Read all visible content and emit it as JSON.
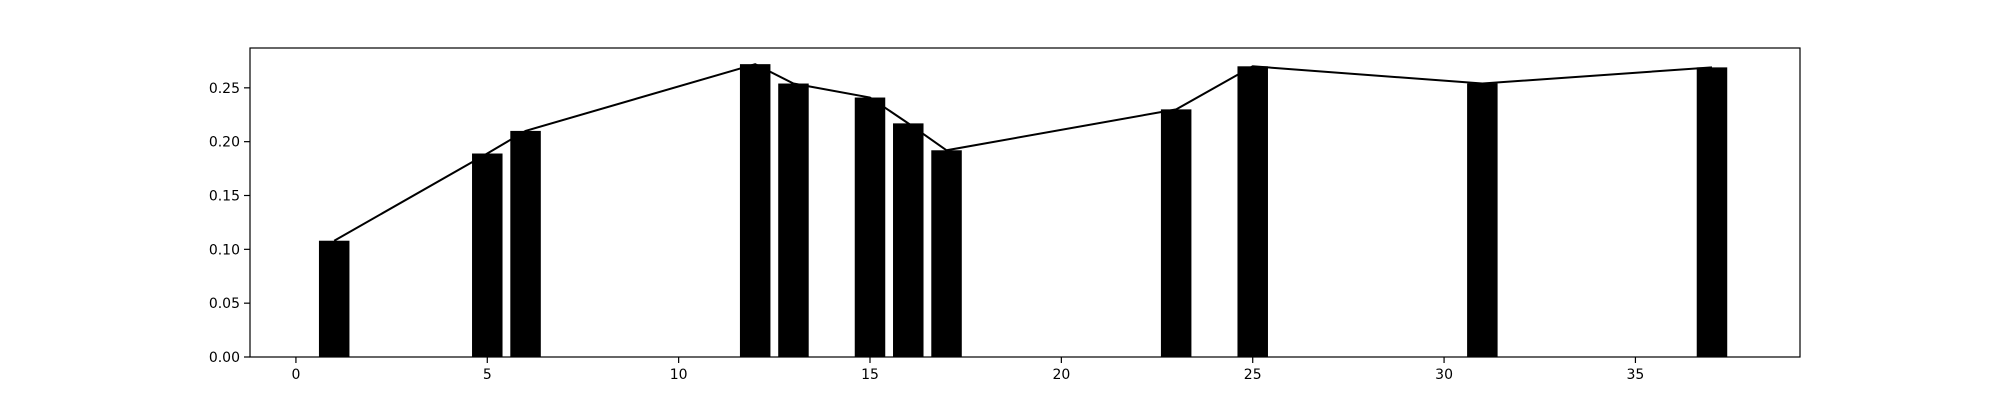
{
  "chart_data": {
    "type": "bar",
    "title": "",
    "xlabel": "",
    "ylabel": "",
    "x": [
      1,
      5,
      6,
      12,
      13,
      15,
      16,
      17,
      23,
      25,
      31,
      37
    ],
    "values": [
      0.108,
      0.189,
      0.21,
      0.272,
      0.254,
      0.241,
      0.217,
      0.192,
      0.23,
      0.27,
      0.254,
      0.269
    ],
    "xlim": [
      -1.2,
      39.3
    ],
    "ylim": [
      0,
      0.287
    ],
    "xticks": [
      0,
      5,
      10,
      15,
      20,
      25,
      30,
      35
    ],
    "yticks": [
      0.0,
      0.05,
      0.1,
      0.15,
      0.2,
      0.25
    ],
    "ytick_labels": [
      "0.00",
      "0.05",
      "0.10",
      "0.15",
      "0.20",
      "0.25"
    ],
    "grid": false,
    "legend": "none",
    "overlay_line": true,
    "colors": {
      "bar": "#000000",
      "line": "#000000",
      "axes": "#000000",
      "background": "#ffffff"
    }
  }
}
